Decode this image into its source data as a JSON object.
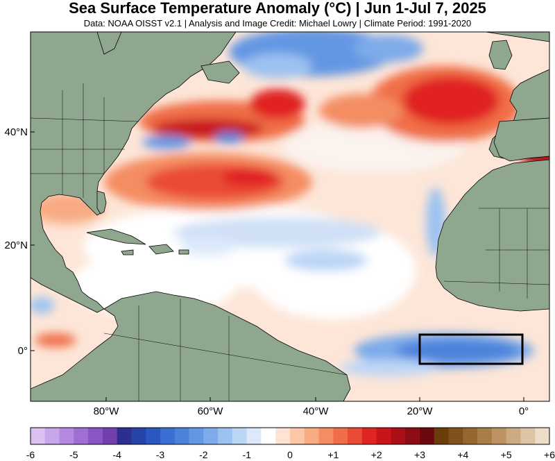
{
  "header": {
    "title": "Sea Surface Temperature Anomaly (°C) | Jun 1-Jul 7, 2025",
    "subtitle": "Data: NOAA OISST v2.1 | Analysis and Image Credit: Michael Lowry | Climate Period: 1991-2020"
  },
  "map": {
    "lon_ticks": [
      "80°W",
      "60°W",
      "40°W",
      "20°W",
      "0°"
    ],
    "lat_ticks": [
      "40°N",
      "20°N",
      "0°"
    ],
    "land_color": "#8fa78f",
    "box_label": "study-region-box"
  },
  "colorbar": {
    "labels": [
      "-6",
      "-5",
      "-4",
      "-3",
      "-2",
      "-1",
      "0",
      "+1",
      "+2",
      "+3",
      "+4",
      "+5",
      "+6"
    ],
    "colors": [
      "#d9c2f2",
      "#c7a6ea",
      "#b48ae0",
      "#a06fd4",
      "#8a55c4",
      "#7140ac",
      "#2c2f8f",
      "#2643a8",
      "#2a57c0",
      "#3a6ed0",
      "#4c82da",
      "#6497e3",
      "#7eabea",
      "#9cc2f1",
      "#bcd6f6",
      "#dde9fb",
      "#ffffff",
      "#fde3d3",
      "#fbc7a8",
      "#f8aa82",
      "#f48d62",
      "#f06e47",
      "#ea4b34",
      "#e02424",
      "#c8141a",
      "#aa0f17",
      "#8c0d14",
      "#6a0a10",
      "#6b3d0b",
      "#80511c",
      "#95672f",
      "#a97d47",
      "#bc9362",
      "#cdab82",
      "#ddc4a5",
      "#ecdcc8"
    ]
  }
}
